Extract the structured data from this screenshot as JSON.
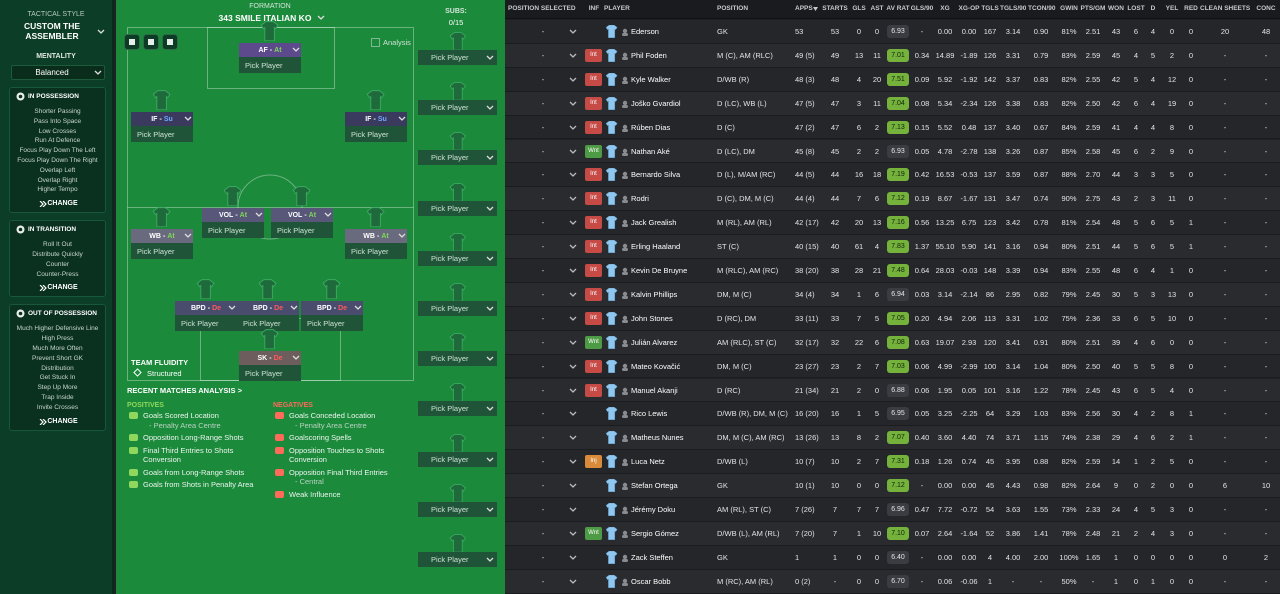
{
  "tactics": {
    "style_label": "TACTICAL STYLE",
    "style": "CUSTOM THE ASSEMBLER",
    "mentality_label": "MENTALITY",
    "mentality": "Balanced",
    "sections": [
      {
        "title": "IN POSSESSION",
        "items": [
          "Shorter Passing",
          "Pass Into Space",
          "Low Crosses",
          "Run At Defence",
          "Focus Play Down The Left",
          "Focus Play Down The Right",
          "Overlap Left",
          "Overlap Right",
          "Higher Tempo"
        ],
        "action": "CHANGE"
      },
      {
        "title": "IN TRANSITION",
        "items": [
          "Roll It Out",
          "Distribute Quickly",
          "Counter",
          "Counter-Press"
        ],
        "action": "CHANGE"
      },
      {
        "title": "OUT OF POSSESSION",
        "items": [
          "Much Higher Defensive Line",
          "High Press",
          "Much More Often",
          "Prevent Short GK",
          "Distribution",
          "Get Stuck In",
          "Step Up More",
          "Trap Inside",
          "Invite Crosses"
        ],
        "action": "CHANGE"
      }
    ]
  },
  "pitch": {
    "formation_label": "FORMATION",
    "formation": "343 SMILE ITALIAN KO",
    "subs_label": "SUBS:",
    "subs": "0/15",
    "analysis": "Analysis",
    "pick_label": "Pick Player",
    "duty_separator": "-",
    "positions": [
      {
        "role": "AF",
        "duty": "At"
      },
      {
        "role": "IF",
        "duty": "Su"
      },
      {
        "role": "IF",
        "duty": "Su"
      },
      {
        "role": "VOL",
        "duty": "At"
      },
      {
        "role": "VOL",
        "duty": "At"
      },
      {
        "role": "WB",
        "duty": "At"
      },
      {
        "role": "WB",
        "duty": "At"
      },
      {
        "role": "BPD",
        "duty": "De"
      },
      {
        "role": "BPD",
        "duty": "De"
      },
      {
        "role": "BPD",
        "duty": "De"
      },
      {
        "role": "SK",
        "duty": "De"
      }
    ],
    "fluidity_label": "TEAM FLUIDITY",
    "fluidity": "Structured"
  },
  "analysis": {
    "title": "RECENT MATCHES ANALYSIS >",
    "positives_label": "POSITIVES",
    "positives": [
      {
        "text": "Goals Scored Location",
        "detail": "- Penalty Area Centre"
      },
      {
        "text": "Opposition Long-Range Shots"
      },
      {
        "text": "Final Third Entries to Shots Conversion"
      },
      {
        "text": "Goals from Long-Range Shots"
      },
      {
        "text": "Goals from Shots in Penalty Area"
      }
    ],
    "negatives_label": "NEGATIVES",
    "negatives": [
      {
        "text": "Goals Conceded Location",
        "detail": "- Penalty Area Centre"
      },
      {
        "text": "Goalscoring Spells"
      },
      {
        "text": "Opposition Touches to Shots Conversion"
      },
      {
        "text": "Opposition Final Third Entries",
        "detail": "- Central"
      },
      {
        "text": "Weak Influence"
      }
    ]
  },
  "table": {
    "columns": [
      "POSITION SELECTED",
      "INF",
      "PLAYER",
      "POSITION",
      "APPS",
      "STARTS",
      "GLS",
      "AST",
      "AV RAT",
      "GLS/90",
      "XG",
      "XG-OP",
      "TGLS",
      "TGLS/90",
      "TCON/90",
      "GWIN",
      "PTS/GM",
      "WON",
      "LOST",
      "D",
      "YEL",
      "RED",
      "CLEAN SHEETS",
      "CONC"
    ],
    "rows": [
      [
        "-",
        null,
        "Ederson",
        "GK",
        "53",
        "53",
        "0",
        "0",
        "6.93",
        "-",
        "0.00",
        "0.00",
        "167",
        "3.14",
        "0.90",
        "81%",
        "2.51",
        "43",
        "6",
        "4",
        "0",
        "0",
        "20",
        "48"
      ],
      [
        "-",
        "Int",
        "Phil Foden",
        "M (C), AM (RLC)",
        "49 (5)",
        "49",
        "13",
        "11",
        "7.01",
        "0.34",
        "14.89",
        "-1.89",
        "126",
        "3.31",
        "0.79",
        "83%",
        "2.59",
        "45",
        "4",
        "5",
        "2",
        "0",
        "-",
        "-"
      ],
      [
        "-",
        "Int",
        "Kyle Walker",
        "D/WB (R)",
        "48 (3)",
        "48",
        "4",
        "20",
        "7.51",
        "0.09",
        "5.92",
        "-1.92",
        "142",
        "3.37",
        "0.83",
        "82%",
        "2.55",
        "42",
        "5",
        "4",
        "12",
        "0",
        "-",
        "-"
      ],
      [
        "-",
        "Int",
        "Joško Gvardiol",
        "D (LC), WB (L)",
        "47 (5)",
        "47",
        "3",
        "11",
        "7.04",
        "0.08",
        "5.34",
        "-2.34",
        "126",
        "3.38",
        "0.83",
        "82%",
        "2.50",
        "42",
        "6",
        "4",
        "19",
        "0",
        "-",
        "-"
      ],
      [
        "-",
        "Int",
        "Rúben Dias",
        "D (C)",
        "47 (2)",
        "47",
        "6",
        "2",
        "7.13",
        "0.15",
        "5.52",
        "0.48",
        "137",
        "3.40",
        "0.67",
        "84%",
        "2.59",
        "41",
        "4",
        "4",
        "8",
        "0",
        "-",
        "-"
      ],
      [
        "-",
        "Wnt",
        "Nathan Aké",
        "D (LC), DM",
        "45 (8)",
        "45",
        "2",
        "2",
        "6.93",
        "0.05",
        "4.78",
        "-2.78",
        "138",
        "3.26",
        "0.87",
        "85%",
        "2.58",
        "45",
        "6",
        "2",
        "9",
        "0",
        "-",
        "-"
      ],
      [
        "-",
        "Int",
        "Bernardo Silva",
        "D (L), M/AM (RC)",
        "44 (5)",
        "44",
        "16",
        "18",
        "7.19",
        "0.42",
        "16.53",
        "-0.53",
        "137",
        "3.59",
        "0.87",
        "88%",
        "2.70",
        "44",
        "3",
        "3",
        "5",
        "0",
        "-",
        "-"
      ],
      [
        "-",
        "Int",
        "Rodri",
        "D (C), DM, M (C)",
        "44 (4)",
        "44",
        "7",
        "6",
        "7.12",
        "0.19",
        "8.67",
        "-1.67",
        "131",
        "3.47",
        "0.74",
        "90%",
        "2.75",
        "43",
        "2",
        "3",
        "11",
        "0",
        "-",
        "-"
      ],
      [
        "-",
        "Int",
        "Jack Grealish",
        "M (RL), AM (RL)",
        "42 (17)",
        "42",
        "20",
        "13",
        "7.16",
        "0.56",
        "13.25",
        "6.75",
        "123",
        "3.42",
        "0.78",
        "81%",
        "2.54",
        "48",
        "5",
        "6",
        "5",
        "1",
        "-",
        "-"
      ],
      [
        "-",
        "Int",
        "Erling Haaland",
        "ST (C)",
        "40 (15)",
        "40",
        "61",
        "4",
        "7.83",
        "1.37",
        "55.10",
        "5.90",
        "141",
        "3.16",
        "0.94",
        "80%",
        "2.51",
        "44",
        "5",
        "6",
        "5",
        "1",
        "-",
        "-"
      ],
      [
        "-",
        "Int",
        "Kevin De Bruyne",
        "M (RLC), AM (RC)",
        "38 (20)",
        "38",
        "28",
        "21",
        "7.48",
        "0.64",
        "28.03",
        "-0.03",
        "148",
        "3.39",
        "0.94",
        "83%",
        "2.55",
        "48",
        "6",
        "4",
        "1",
        "0",
        "-",
        "-"
      ],
      [
        "-",
        "Int",
        "Kalvin Phillips",
        "DM, M (C)",
        "34 (4)",
        "34",
        "1",
        "6",
        "6.94",
        "0.03",
        "3.14",
        "-2.14",
        "86",
        "2.95",
        "0.82",
        "79%",
        "2.45",
        "30",
        "5",
        "3",
        "13",
        "0",
        "-",
        "-"
      ],
      [
        "-",
        "Int",
        "John Stones",
        "D (RC), DM",
        "33 (11)",
        "33",
        "7",
        "5",
        "7.05",
        "0.20",
        "4.94",
        "2.06",
        "113",
        "3.31",
        "1.02",
        "75%",
        "2.36",
        "33",
        "6",
        "5",
        "10",
        "0",
        "-",
        "-"
      ],
      [
        "-",
        "Wnt",
        "Julián Alvarez",
        "AM (RLC), ST (C)",
        "32 (17)",
        "32",
        "22",
        "6",
        "7.08",
        "0.63",
        "19.07",
        "2.93",
        "120",
        "3.41",
        "0.91",
        "80%",
        "2.51",
        "39",
        "4",
        "6",
        "0",
        "0",
        "-",
        "-"
      ],
      [
        "-",
        "Int",
        "Mateo Kovačić",
        "DM, M (C)",
        "23 (27)",
        "23",
        "2",
        "7",
        "7.03",
        "0.06",
        "4.99",
        "-2.99",
        "100",
        "3.14",
        "1.04",
        "80%",
        "2.50",
        "40",
        "5",
        "5",
        "8",
        "0",
        "-",
        "-"
      ],
      [
        "-",
        "Int",
        "Manuel Akanji",
        "D (RC)",
        "21 (34)",
        "21",
        "2",
        "0",
        "6.88",
        "0.06",
        "1.95",
        "0.05",
        "101",
        "3.16",
        "1.22",
        "78%",
        "2.45",
        "43",
        "6",
        "5",
        "4",
        "0",
        "-",
        "-"
      ],
      [
        "-",
        null,
        "Rico Lewis",
        "D/WB (R), DM, M (C)",
        "16 (20)",
        "16",
        "1",
        "5",
        "6.95",
        "0.05",
        "3.25",
        "-2.25",
        "64",
        "3.29",
        "1.03",
        "83%",
        "2.56",
        "30",
        "4",
        "2",
        "8",
        "1",
        "-",
        "-"
      ],
      [
        "-",
        null,
        "Matheus Nunes",
        "DM, M (C), AM (RC)",
        "13 (26)",
        "13",
        "8",
        "2",
        "7.07",
        "0.40",
        "3.60",
        "4.40",
        "74",
        "3.71",
        "1.15",
        "74%",
        "2.38",
        "29",
        "4",
        "6",
        "2",
        "1",
        "-",
        "-"
      ],
      [
        "-",
        "Inj",
        "Luca Netz",
        "D/WB (L)",
        "10 (7)",
        "10",
        "2",
        "7",
        "7.31",
        "0.18",
        "1.26",
        "0.74",
        "45",
        "3.95",
        "0.88",
        "82%",
        "2.59",
        "14",
        "1",
        "2",
        "5",
        "0",
        "-",
        "-"
      ],
      [
        "-",
        null,
        "Stefan Ortega",
        "GK",
        "10 (1)",
        "10",
        "0",
        "0",
        "7.12",
        "-",
        "0.00",
        "0.00",
        "45",
        "4.43",
        "0.98",
        "82%",
        "2.64",
        "9",
        "0",
        "2",
        "0",
        "0",
        "6",
        "10"
      ],
      [
        "-",
        null,
        "Jérémy Doku",
        "AM (RL), ST (C)",
        "7 (26)",
        "7",
        "7",
        "7",
        "6.96",
        "0.47",
        "7.72",
        "-0.72",
        "54",
        "3.63",
        "1.55",
        "73%",
        "2.33",
        "24",
        "4",
        "5",
        "3",
        "0",
        "-",
        "-"
      ],
      [
        "-",
        "Wnt",
        "Sergio Gómez",
        "D/WB (L), AM (RL)",
        "7 (20)",
        "7",
        "1",
        "10",
        "7.10",
        "0.07",
        "2.64",
        "-1.64",
        "52",
        "3.86",
        "1.41",
        "78%",
        "2.48",
        "21",
        "2",
        "4",
        "3",
        "0",
        "-",
        "-"
      ],
      [
        "-",
        null,
        "Zack Steffen",
        "GK",
        "1",
        "1",
        "0",
        "0",
        "6.40",
        "-",
        "0.00",
        "0.00",
        "4",
        "4.00",
        "2.00",
        "100%",
        "1.65",
        "1",
        "0",
        "0",
        "0",
        "0",
        "0",
        "2"
      ],
      [
        "-",
        null,
        "Oscar Bobb",
        "M (RC), AM (RL)",
        "0 (2)",
        "-",
        "0",
        "0",
        "6.70",
        "-",
        "0.06",
        "-0.06",
        "1",
        "-",
        "-",
        "50%",
        "-",
        "1",
        "0",
        "1",
        "0",
        "0",
        "-",
        "-"
      ]
    ]
  }
}
